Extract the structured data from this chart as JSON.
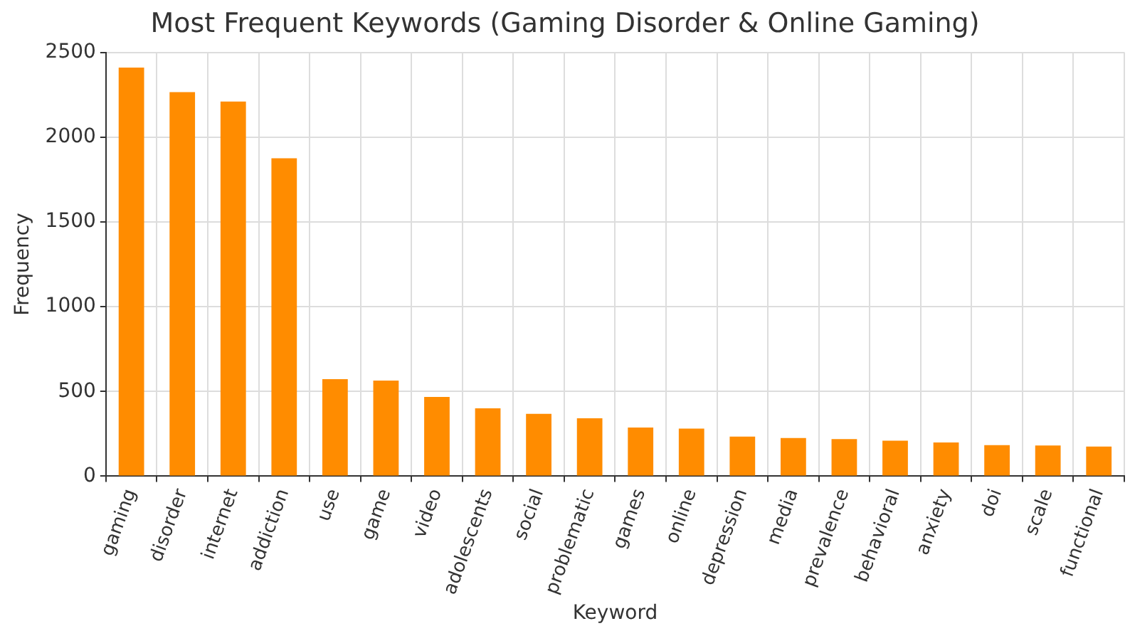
{
  "chart_data": {
    "type": "bar",
    "title": "Most Frequent Keywords (Gaming Disorder & Online Gaming)",
    "xlabel": "Keyword",
    "ylabel": "Frequency",
    "categories": [
      "gaming",
      "disorder",
      "internet",
      "addiction",
      "use",
      "game",
      "video",
      "adolescents",
      "social",
      "problematic",
      "games",
      "online",
      "depression",
      "media",
      "prevalence",
      "behavioral",
      "anxiety",
      "doi",
      "scale",
      "functional"
    ],
    "values": [
      2410,
      2265,
      2210,
      1875,
      573,
      564,
      468,
      401,
      368,
      342,
      287,
      281,
      234,
      225,
      219,
      210,
      199,
      184,
      181,
      175
    ],
    "color": "#ff8c00",
    "ylim": [
      0,
      2500
    ],
    "yticks": [
      0,
      500,
      1000,
      1500,
      2000,
      2500
    ],
    "grid": true
  }
}
